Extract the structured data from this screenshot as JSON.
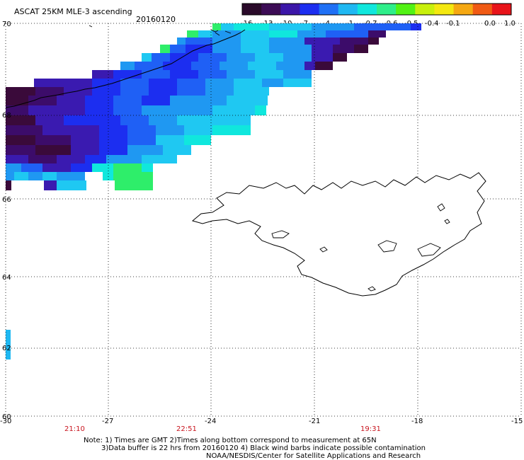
{
  "header": {
    "title": "ASCAT 25KM MLE-3 ascending",
    "date": "20160120"
  },
  "colorbar": {
    "labels": [
      "-16",
      "-13",
      "-10",
      "-7",
      "-4",
      "-1",
      "-0.7",
      "-0.6",
      "-0.5",
      "-0.4",
      "-0.1",
      "0.0",
      "1.0"
    ],
    "colors": [
      "#2a0a2a",
      "#3c0c55",
      "#3b16a8",
      "#1c2ef0",
      "#1f70f5",
      "#1fb8f2",
      "#10e7dd",
      "#2eee8a",
      "#52f214",
      "#c8f00c",
      "#f4e810",
      "#f5a812",
      "#f05a14",
      "#e8141a"
    ]
  },
  "axes": {
    "x_ticks": [
      "-30",
      "-27",
      "-24",
      "-21",
      "-18",
      "-15"
    ],
    "y_ticks": [
      "60",
      "62",
      "64",
      "66",
      "68",
      "70"
    ]
  },
  "times": [
    "21:10",
    "22:51",
    "19:31"
  ],
  "notes": {
    "line1": "Note: 1) Times are GMT 2)Times along bottom correspond to measurement at 65N",
    "line2": "3)Data buffer is 22 hrs from 20160120 4) Black wind barbs indicate possible contamination",
    "line3": "NOAA/NESDIS/Center for Satellite Applications and Research"
  },
  "colors": {
    "time_label": "#c8141e",
    "grid": "#000000"
  }
}
